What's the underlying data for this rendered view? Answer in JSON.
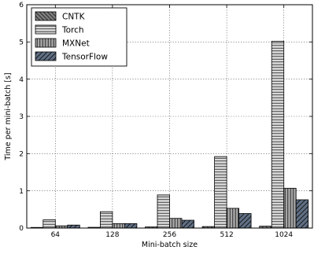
{
  "chart_data": {
    "type": "bar",
    "categories": [
      "64",
      "128",
      "256",
      "512",
      "1024"
    ],
    "series": [
      {
        "name": "CNTK",
        "values": [
          0.01,
          0.02,
          0.03,
          0.04,
          0.05
        ],
        "color": "#7f7f7f",
        "pattern": "diagonal-left"
      },
      {
        "name": "Torch",
        "values": [
          0.22,
          0.44,
          0.89,
          1.92,
          5.02
        ],
        "color": "#d9d9d9",
        "pattern": "horizontal"
      },
      {
        "name": "MXNet",
        "values": [
          0.06,
          0.12,
          0.26,
          0.53,
          1.07
        ],
        "color": "#a6a6a6",
        "pattern": "vertical"
      },
      {
        "name": "TensorFlow",
        "values": [
          0.08,
          0.12,
          0.21,
          0.39,
          0.76
        ],
        "color": "#5f6f85",
        "pattern": "diagonal-right"
      }
    ],
    "xlabel": "Mini-batch size",
    "ylabel": "Time per mini-batch [s]",
    "ylim": [
      0,
      6
    ],
    "yticks": [
      "0",
      "1",
      "2",
      "3",
      "4",
      "5",
      "6"
    ],
    "grid": true,
    "legend_position": "top-left"
  }
}
